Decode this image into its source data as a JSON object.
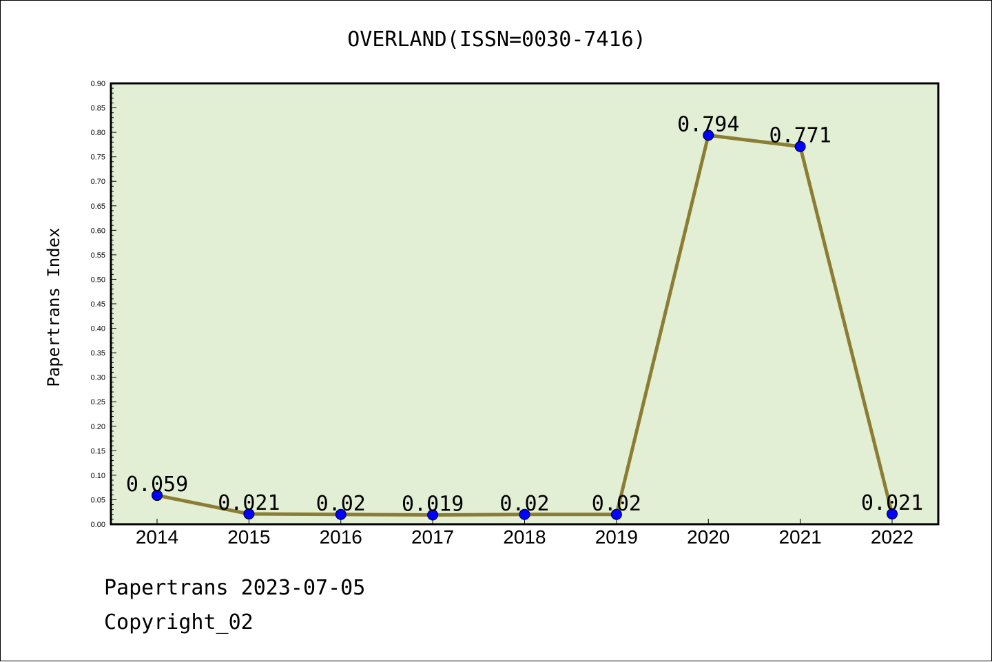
{
  "chart_data": {
    "type": "line",
    "title": "OVERLAND(ISSN=0030-7416)",
    "xlabel": "",
    "ylabel": "Papertrans Index",
    "categories": [
      "2014",
      "2015",
      "2016",
      "2017",
      "2018",
      "2019",
      "2020",
      "2021",
      "2022"
    ],
    "series": [
      {
        "values": [
          0.059,
          0.021,
          0.02,
          0.019,
          0.02,
          0.02,
          0.794,
          0.771,
          0.021
        ],
        "point_labels": [
          "0.059",
          "0.021",
          "0.02",
          "0.019",
          "0.02",
          "0.02",
          "0.794",
          "0.771",
          "0.021"
        ]
      }
    ],
    "ylim": [
      0,
      0.9
    ],
    "yticks": [
      "0.00",
      "0.05",
      "0.10",
      "0.15",
      "0.20",
      "0.25",
      "0.30",
      "0.35",
      "0.40",
      "0.45",
      "0.50",
      "0.55",
      "0.60",
      "0.65",
      "0.70",
      "0.75",
      "0.80",
      "0.85",
      "0.90"
    ],
    "grid": false,
    "legend": "none",
    "colors": {
      "plot_background": "#e2efd5",
      "line": "#8b7d33",
      "marker": "#0000ff"
    }
  },
  "footer": {
    "line1": "Papertrans 2023-07-05",
    "line2": "Copyright_02"
  }
}
